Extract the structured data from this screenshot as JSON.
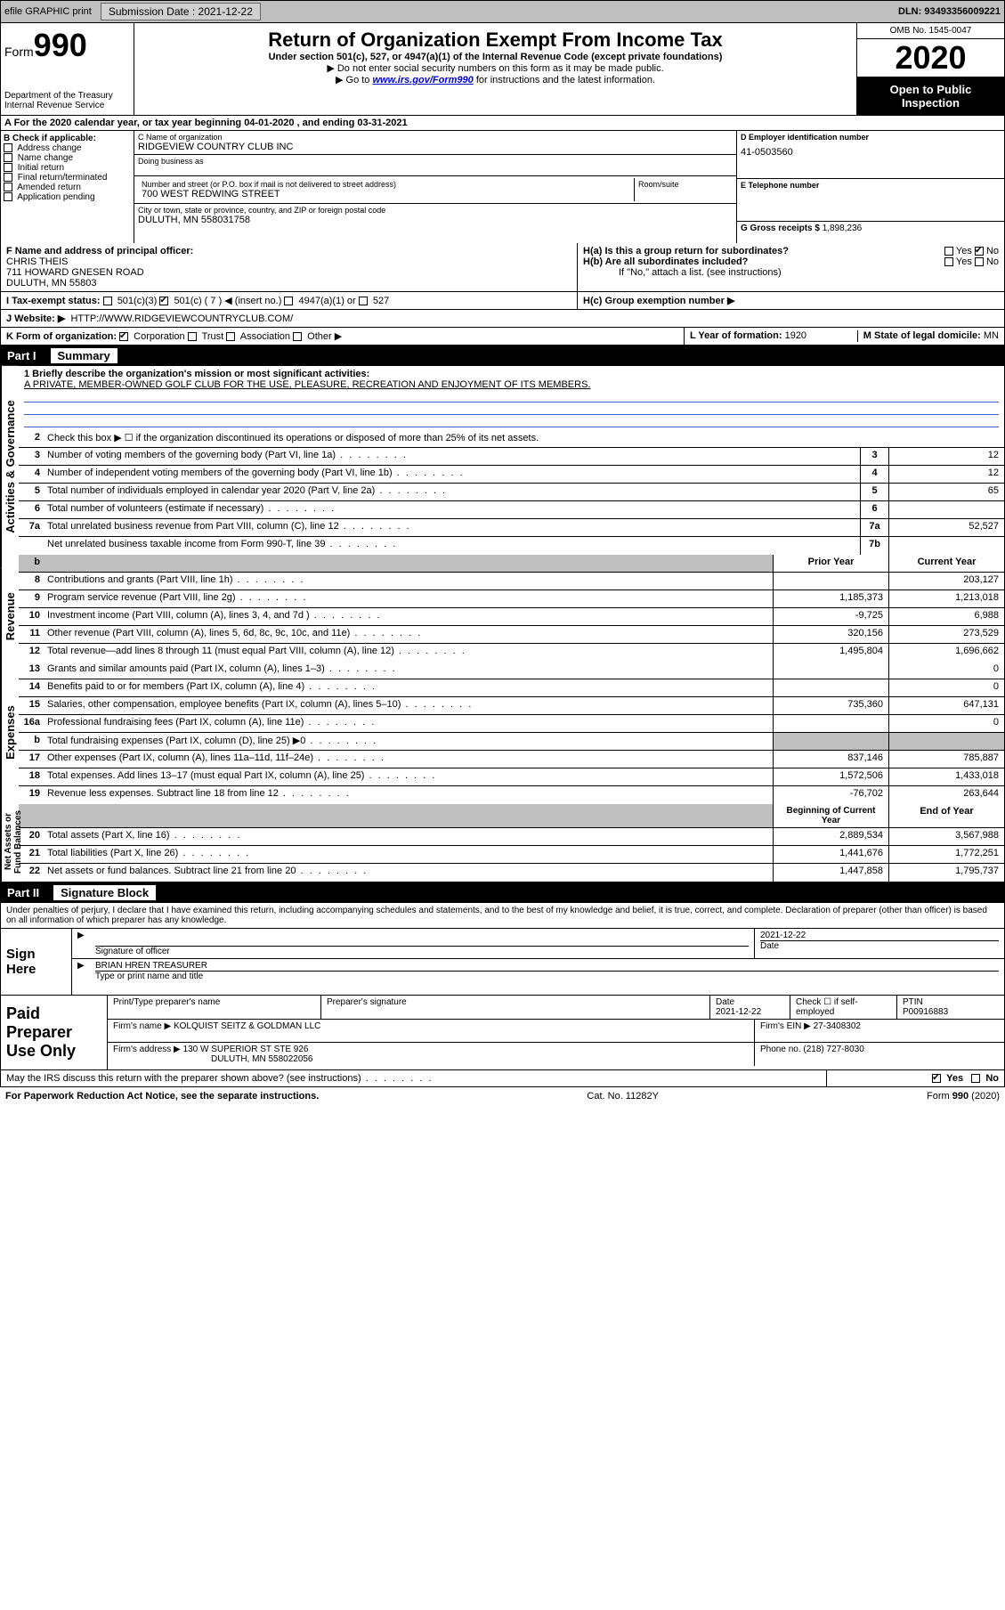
{
  "topbar": {
    "efile_label": "efile GRAPHIC print",
    "submission_label": "Submission Date : 2021-12-22",
    "dln_label": "DLN: 93493356009221"
  },
  "header": {
    "form_word": "Form",
    "form_number": "990",
    "dept": "Department of the Treasury",
    "irs": "Internal Revenue Service",
    "title": "Return of Organization Exempt From Income Tax",
    "sub": "Under section 501(c), 527, or 4947(a)(1) of the Internal Revenue Code (except private foundations)",
    "line1": "▶ Do not enter social security numbers on this form as it may be made public.",
    "line2_pre": "▶ Go to ",
    "line2_link": "www.irs.gov/Form990",
    "line2_post": " for instructions and the latest information.",
    "omb": "OMB No. 1545-0047",
    "year": "2020",
    "open": "Open to Public Inspection"
  },
  "A": {
    "text": "A For the 2020 calendar year, or tax year beginning 04-01-2020    , and ending 03-31-2021"
  },
  "B": {
    "title": "B Check if applicable:",
    "items": [
      "Address change",
      "Name change",
      "Initial return",
      "Final return/terminated",
      "Amended return",
      "Application pending"
    ]
  },
  "C": {
    "name_lab": "C Name of organization",
    "name_val": "RIDGEVIEW COUNTRY CLUB INC",
    "dba_lab": "Doing business as",
    "street_lab": "Number and street (or P.O. box if mail is not delivered to street address)",
    "room_lab": "Room/suite",
    "street_val": "700 WEST REDWING STREET",
    "city_lab": "City or town, state or province, country, and ZIP or foreign postal code",
    "city_val": "DULUTH, MN  558031758"
  },
  "D": {
    "lab": "D Employer identification number",
    "val": "41-0503560"
  },
  "E": {
    "lab": "E Telephone number",
    "val": ""
  },
  "G": {
    "lab": "G Gross receipts $",
    "val": "1,898,236"
  },
  "F": {
    "lab": "F  Name and address of principal officer:",
    "name": "CHRIS THEIS",
    "addr1": "711 HOWARD GNESEN ROAD",
    "addr2": "DULUTH, MN  55803"
  },
  "H": {
    "a_lab": "H(a)  Is this a group return for subordinates?",
    "b_lab": "H(b)  Are all subordinates included?",
    "note": "If \"No,\" attach a list. (see instructions)",
    "c_lab": "H(c)  Group exemption number ▶"
  },
  "I": {
    "lab": "I   Tax-exempt status:",
    "opt1": "501(c)(3)",
    "opt2": "501(c) ( 7 ) ◀ (insert no.)",
    "opt3": "4947(a)(1) or",
    "opt4": "527"
  },
  "J": {
    "lab": "J   Website: ▶",
    "val": "HTTP://WWW.RIDGEVIEWCOUNTRYCLUB.COM/"
  },
  "K": {
    "lab": "K Form of organization:",
    "opts": [
      "Corporation",
      "Trust",
      "Association",
      "Other ▶"
    ],
    "L_lab": "L Year of formation:",
    "L_val": "1920",
    "M_lab": "M State of legal domicile:",
    "M_val": "MN"
  },
  "partI": {
    "num": "Part I",
    "title": "Summary"
  },
  "summary": {
    "q1_lab": "1  Briefly describe the organization's mission or most significant activities:",
    "q1_val": "A PRIVATE, MEMBER-OWNED GOLF CLUB FOR THE USE, PLEASURE, RECREATION AND ENJOYMENT OF ITS MEMBERS.",
    "q2": "Check this box ▶ ☐  if the organization discontinued its operations or disposed of more than 25% of its net assets.",
    "rows_single": [
      {
        "n": "3",
        "t": "Number of voting members of the governing body (Part VI, line 1a)",
        "k": "3",
        "v": "12"
      },
      {
        "n": "4",
        "t": "Number of independent voting members of the governing body (Part VI, line 1b)",
        "k": "4",
        "v": "12"
      },
      {
        "n": "5",
        "t": "Total number of individuals employed in calendar year 2020 (Part V, line 2a)",
        "k": "5",
        "v": "65"
      },
      {
        "n": "6",
        "t": "Total number of volunteers (estimate if necessary)",
        "k": "6",
        "v": ""
      },
      {
        "n": "7a",
        "t": "Total unrelated business revenue from Part VIII, column (C), line 12",
        "k": "7a",
        "v": "52,527"
      },
      {
        "n": "",
        "t": "Net unrelated business taxable income from Form 990-T, line 39",
        "k": "7b",
        "v": ""
      }
    ],
    "col_head_a": "Prior Year",
    "col_head_b": "Current Year",
    "rev_rows": [
      {
        "n": "8",
        "t": "Contributions and grants (Part VIII, line 1h)",
        "a": "",
        "b": "203,127"
      },
      {
        "n": "9",
        "t": "Program service revenue (Part VIII, line 2g)",
        "a": "1,185,373",
        "b": "1,213,018"
      },
      {
        "n": "10",
        "t": "Investment income (Part VIII, column (A), lines 3, 4, and 7d )",
        "a": "-9,725",
        "b": "6,988"
      },
      {
        "n": "11",
        "t": "Other revenue (Part VIII, column (A), lines 5, 6d, 8c, 9c, 10c, and 11e)",
        "a": "320,156",
        "b": "273,529"
      },
      {
        "n": "12",
        "t": "Total revenue—add lines 8 through 11 (must equal Part VIII, column (A), line 12)",
        "a": "1,495,804",
        "b": "1,696,662"
      }
    ],
    "exp_rows": [
      {
        "n": "13",
        "t": "Grants and similar amounts paid (Part IX, column (A), lines 1–3)",
        "a": "",
        "b": "0"
      },
      {
        "n": "14",
        "t": "Benefits paid to or for members (Part IX, column (A), line 4)",
        "a": "",
        "b": "0"
      },
      {
        "n": "15",
        "t": "Salaries, other compensation, employee benefits (Part IX, column (A), lines 5–10)",
        "a": "735,360",
        "b": "647,131"
      },
      {
        "n": "16a",
        "t": "Professional fundraising fees (Part IX, column (A), line 11e)",
        "a": "",
        "b": "0"
      },
      {
        "n": "b",
        "t": "Total fundraising expenses (Part IX, column (D), line 25) ▶0",
        "a": "shade",
        "b": "shade"
      },
      {
        "n": "17",
        "t": "Other expenses (Part IX, column (A), lines 11a–11d, 11f–24e)",
        "a": "837,146",
        "b": "785,887"
      },
      {
        "n": "18",
        "t": "Total expenses. Add lines 13–17 (must equal Part IX, column (A), line 25)",
        "a": "1,572,506",
        "b": "1,433,018"
      },
      {
        "n": "19",
        "t": "Revenue less expenses. Subtract line 18 from line 12",
        "a": "-76,702",
        "b": "263,644"
      }
    ],
    "net_head_a": "Beginning of Current Year",
    "net_head_b": "End of Year",
    "net_rows": [
      {
        "n": "20",
        "t": "Total assets (Part X, line 16)",
        "a": "2,889,534",
        "b": "3,567,988"
      },
      {
        "n": "21",
        "t": "Total liabilities (Part X, line 26)",
        "a": "1,441,676",
        "b": "1,772,251"
      },
      {
        "n": "22",
        "t": "Net assets or fund balances. Subtract line 21 from line 20",
        "a": "1,447,858",
        "b": "1,795,737"
      }
    ],
    "sections": {
      "gov": "Activities & Governance",
      "rev": "Revenue",
      "exp": "Expenses",
      "net": "Net Assets or Fund Balances"
    }
  },
  "partII": {
    "num": "Part II",
    "title": "Signature Block"
  },
  "perjury": "Under penalties of perjury, I declare that I have examined this return, including accompanying schedules and statements, and to the best of my knowledge and belief, it is true, correct, and complete. Declaration of preparer (other than officer) is based on all information of which preparer has any knowledge.",
  "sign": {
    "here": "Sign Here",
    "sig_lab": "Signature of officer",
    "date_lab": "Date",
    "date_val": "2021-12-22",
    "name_val": "BRIAN HREN  TREASURER",
    "name_lab": "Type or print name and title"
  },
  "prep": {
    "title": "Paid Preparer Use Only",
    "r1": {
      "c1": "Print/Type preparer's name",
      "c2": "Preparer's signature",
      "c3_lab": "Date",
      "c3_val": "2021-12-22",
      "c4": "Check ☐ if self-employed",
      "c5_lab": "PTIN",
      "c5_val": "P00916883"
    },
    "r2": {
      "lab": "Firm's name     ▶",
      "val": "KOLQUIST SEITZ & GOLDMAN LLC",
      "ein_lab": "Firm's EIN ▶",
      "ein_val": "27-3408302"
    },
    "r3": {
      "lab": "Firm's address ▶",
      "val1": "130 W SUPERIOR ST STE 926",
      "val2": "DULUTH, MN  558022056",
      "ph_lab": "Phone no.",
      "ph_val": "(218) 727-8030"
    }
  },
  "discuss": {
    "text": "May the IRS discuss this return with the preparer shown above? (see instructions)",
    "yes": "Yes",
    "no": "No"
  },
  "footer": {
    "left": "For Paperwork Reduction Act Notice, see the separate instructions.",
    "mid": "Cat. No. 11282Y",
    "right": "Form 990 (2020)"
  }
}
